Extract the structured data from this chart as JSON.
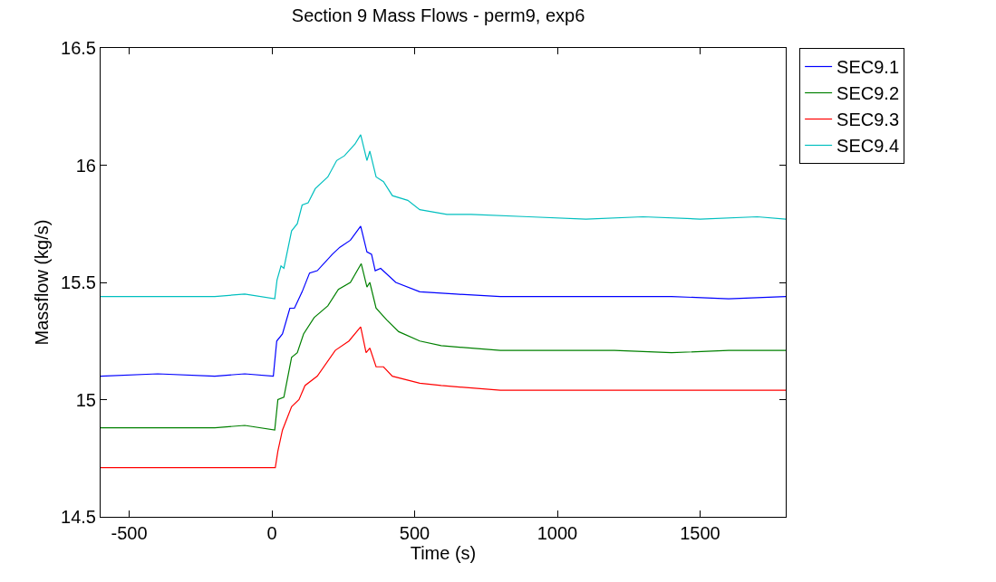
{
  "chart_data": {
    "type": "line",
    "title": "Section 9 Mass Flows - perm9, exp6",
    "xlabel": "Time (s)",
    "ylabel": "Massflow (kg/s)",
    "xlim": [
      -600,
      1800
    ],
    "xticks": [
      -500,
      0,
      500,
      1000,
      1500
    ],
    "ylim": [
      14.5,
      16.5
    ],
    "yticks": [
      14.5,
      15,
      15.5,
      16,
      16.5
    ],
    "grid": false,
    "legend": "top right",
    "marker": "none",
    "line_style": "solid",
    "series": [
      {
        "name": "SEC9.1",
        "color": "#0000ff",
        "x": [
          -600,
          -400,
          -200,
          -95,
          5,
          17,
          37,
          63,
          79,
          106,
          132,
          159,
          212,
          238,
          275,
          311,
          333,
          349,
          362,
          381,
          434,
          518,
          645,
          800,
          1000,
          1200,
          1400,
          1600,
          1800
        ],
        "values": [
          15.1,
          15.11,
          15.1,
          15.11,
          15.1,
          15.25,
          15.28,
          15.39,
          15.39,
          15.46,
          15.54,
          15.55,
          15.62,
          15.65,
          15.68,
          15.74,
          15.63,
          15.62,
          15.55,
          15.56,
          15.5,
          15.46,
          15.45,
          15.44,
          15.44,
          15.44,
          15.44,
          15.43,
          15.44
        ]
      },
      {
        "name": "SEC9.2",
        "color": "#008000",
        "x": [
          -600,
          -400,
          -200,
          -95,
          10,
          21,
          42,
          69,
          89,
          111,
          148,
          196,
          233,
          275,
          313,
          333,
          343,
          365,
          402,
          444,
          518,
          593,
          800,
          1000,
          1200,
          1400,
          1600,
          1800
        ],
        "values": [
          14.88,
          14.88,
          14.88,
          14.89,
          14.87,
          15.0,
          15.01,
          15.18,
          15.2,
          15.28,
          15.35,
          15.4,
          15.47,
          15.5,
          15.58,
          15.48,
          15.5,
          15.39,
          15.34,
          15.29,
          15.25,
          15.23,
          15.21,
          15.21,
          15.21,
          15.2,
          15.21,
          15.21
        ]
      },
      {
        "name": "SEC9.3",
        "color": "#ff0000",
        "x": [
          -600,
          -400,
          -200,
          -95,
          12,
          21,
          37,
          69,
          95,
          116,
          159,
          222,
          270,
          311,
          330,
          343,
          365,
          391,
          422,
          518,
          593,
          800,
          1000,
          1200,
          1400,
          1600,
          1800
        ],
        "values": [
          14.71,
          14.71,
          14.71,
          14.71,
          14.71,
          14.78,
          14.87,
          14.97,
          15.0,
          15.06,
          15.1,
          15.21,
          15.25,
          15.31,
          15.2,
          15.22,
          15.14,
          15.14,
          15.1,
          15.07,
          15.06,
          15.04,
          15.04,
          15.04,
          15.04,
          15.04,
          15.04
        ]
      },
      {
        "name": "SEC9.4",
        "color": "#00bfbf",
        "x": [
          -600,
          -400,
          -200,
          -95,
          10,
          18,
          32,
          42,
          69,
          89,
          106,
          127,
          152,
          196,
          227,
          254,
          291,
          311,
          333,
          343,
          365,
          391,
          422,
          476,
          518,
          613,
          698,
          900,
          1100,
          1300,
          1500,
          1700,
          1800
        ],
        "values": [
          15.44,
          15.44,
          15.44,
          15.45,
          15.43,
          15.51,
          15.57,
          15.56,
          15.72,
          15.75,
          15.83,
          15.84,
          15.9,
          15.95,
          16.02,
          16.04,
          16.09,
          16.13,
          16.02,
          16.06,
          15.95,
          15.93,
          15.87,
          15.85,
          15.81,
          15.79,
          15.79,
          15.78,
          15.77,
          15.78,
          15.77,
          15.78,
          15.77
        ]
      }
    ]
  }
}
